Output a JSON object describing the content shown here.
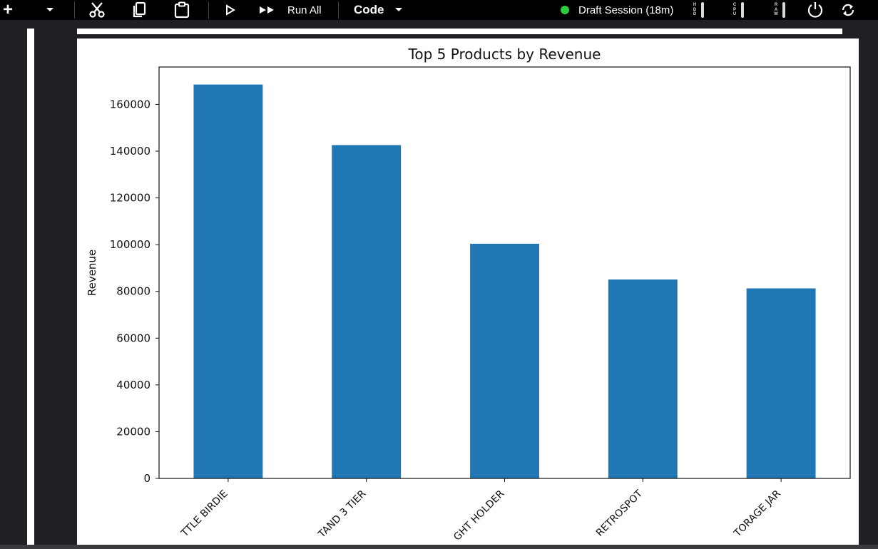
{
  "toolbar": {
    "add_label": "+",
    "run_all_label": "Run All",
    "cell_type": "Code",
    "session_status": "Draft Session (18m)",
    "hdd_label": "HDD",
    "cpu_label": "CPU",
    "ram_label": "RAM",
    "status_color": "#2ecc40"
  },
  "chart_data": {
    "type": "bar",
    "title": "Top 5 Products by Revenue",
    "xlabel": "",
    "ylabel": "Revenue",
    "categories": [
      "TTLE BIRDIE",
      "TAND 3 TIER",
      "GHT HOLDER",
      "RETROSPOT",
      "TORAGE JAR"
    ],
    "values": [
      168500,
      142600,
      100400,
      85100,
      81300
    ],
    "ylim": [
      0,
      176000
    ],
    "yticks": [
      0,
      20000,
      40000,
      60000,
      80000,
      100000,
      120000,
      140000,
      160000
    ],
    "bar_color": "#1f77b4",
    "grid": false
  }
}
